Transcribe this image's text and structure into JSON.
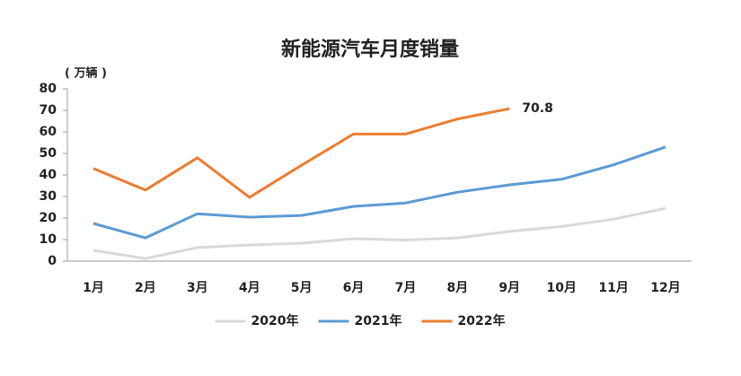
{
  "chart_data": {
    "type": "line",
    "title": "新能源汽车月度销量",
    "y_unit": "( 万辆 )",
    "categories": [
      "1月",
      "2月",
      "3月",
      "4月",
      "5月",
      "6月",
      "7月",
      "8月",
      "9月",
      "10月",
      "11月",
      "12月"
    ],
    "ylim": [
      0,
      80
    ],
    "yticks": [
      0,
      10,
      20,
      30,
      40,
      50,
      60,
      70,
      80
    ],
    "legend": "bottom",
    "series": [
      {
        "name": "2020年",
        "color": "#d9d9d9",
        "values": [
          5,
          1.2,
          6.3,
          7.5,
          8.3,
          10.4,
          9.8,
          10.8,
          13.8,
          16.1,
          19.5,
          24.5
        ]
      },
      {
        "name": "2021年",
        "color": "#5b9bd5",
        "values": [
          17.5,
          10.8,
          22,
          20.4,
          21.2,
          25.4,
          27,
          32,
          35.4,
          38,
          44.7,
          53
        ]
      },
      {
        "name": "2022年",
        "color": "#ed7d31",
        "values": [
          43,
          33,
          48,
          29.6,
          44.5,
          59,
          59,
          66,
          70.8,
          null,
          null,
          null
        ],
        "value_labels": [
          null,
          null,
          null,
          null,
          null,
          null,
          null,
          null,
          "70.8",
          null,
          null,
          null
        ]
      }
    ]
  }
}
